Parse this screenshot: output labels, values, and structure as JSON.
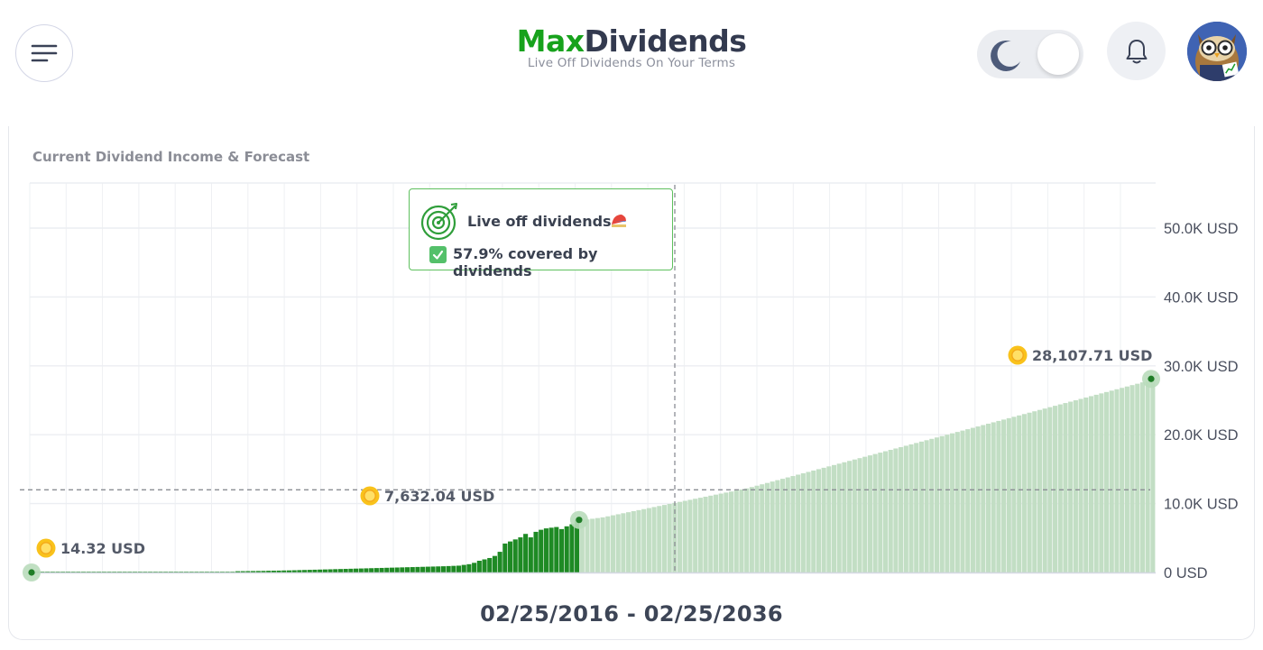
{
  "header": {
    "brand_part1": "Max",
    "brand_part2": "Dividends",
    "tagline": "Live Off Dividends On Your Terms",
    "menu_icon": "hamburger-menu-icon",
    "theme_icon": "moon-icon",
    "notification_icon": "bell-icon",
    "avatar_icon": "owl-avatar"
  },
  "card": {
    "title": "Current Dividend Income & Forecast",
    "date_range": "02/25/2016 - 02/25/2036"
  },
  "tooltip": {
    "title": "Live off dividends",
    "coverage": "57.9% covered by dividends",
    "icon": "target-icon",
    "emoji": "umbrella-icon"
  },
  "colors": {
    "brand_green": "#17a21c",
    "actual_bar": "#1e8a24",
    "forecast_bar": "#c2dec4",
    "tooltip_border": "#5ec05e"
  },
  "chart_data": {
    "type": "bar",
    "y_axis": {
      "position": "right",
      "ylim": [
        0,
        55000
      ],
      "ticks": [
        "0 USD",
        "10.0K USD",
        "20.0K USD",
        "30.0K USD",
        "40.0K USD",
        "50.0K USD"
      ]
    },
    "grid": true,
    "x_range": "02/25/2016 - 02/25/2036",
    "target_line": 12000,
    "series": [
      {
        "name": "",
        "kind": "actual",
        "values": [
          14,
          14,
          14,
          14,
          14,
          14,
          14,
          14,
          14,
          14,
          14,
          14,
          14,
          14,
          14,
          14,
          14,
          14,
          14,
          14,
          14,
          14,
          14,
          14,
          14,
          14,
          14,
          14,
          14,
          14,
          14,
          14,
          14,
          14,
          14,
          14,
          14,
          14,
          14,
          14,
          180,
          190,
          200,
          210,
          220,
          230,
          250,
          260,
          270,
          290,
          300,
          320,
          340,
          360,
          380,
          400,
          420,
          440,
          460,
          480,
          500,
          520,
          540,
          560,
          580,
          600,
          620,
          640,
          660,
          680,
          700,
          720,
          740,
          760,
          780,
          800,
          820,
          840,
          860,
          880,
          900,
          930,
          960,
          990,
          1100,
          1200,
          1400,
          1700,
          1900,
          2100,
          2400,
          3000,
          4200,
          4500,
          4800,
          5100,
          5600,
          5100,
          5900,
          6200,
          6400,
          6500,
          6600,
          6300,
          6700,
          7000,
          7632
        ]
      },
      {
        "name": "",
        "kind": "forecast",
        "values": [
          7632,
          7700,
          7800,
          7900,
          8000,
          8150,
          8300,
          8450,
          8600,
          8750,
          8900,
          9050,
          9200,
          9350,
          9500,
          9650,
          9800,
          9950,
          10100,
          10250,
          10400,
          10550,
          10700,
          10850,
          11000,
          11150,
          11300,
          11450,
          11600,
          11750,
          11900,
          12050,
          12200,
          12400,
          12600,
          12800,
          13000,
          13200,
          13400,
          13600,
          13800,
          14000,
          14200,
          14400,
          14600,
          14800,
          15000,
          15200,
          15400,
          15600,
          15800,
          16000,
          16200,
          16400,
          16600,
          16800,
          17000,
          17200,
          17400,
          17600,
          17800,
          18000,
          18200,
          18400,
          18600,
          18800,
          19000,
          19200,
          19400,
          19600,
          19800,
          20000,
          20200,
          20400,
          20600,
          20800,
          21000,
          21200,
          21400,
          21600,
          21800,
          22000,
          22200,
          22400,
          22600,
          22800,
          23000,
          23200,
          23400,
          23600,
          23800,
          24000,
          24200,
          24400,
          24600,
          24800,
          25000,
          25200,
          25400,
          25600,
          25800,
          26000,
          26200,
          26400,
          26600,
          26800,
          27000,
          27200,
          27400,
          27600,
          27800,
          28107.71
        ]
      }
    ],
    "annotations": [
      {
        "label": "14.32 USD",
        "value": 14.32,
        "point": "start"
      },
      {
        "label": "7,632.04 USD",
        "value": 7632.04,
        "point": "today"
      },
      {
        "label": "28,107.71 USD",
        "value": 28107.71,
        "point": "end"
      }
    ]
  }
}
